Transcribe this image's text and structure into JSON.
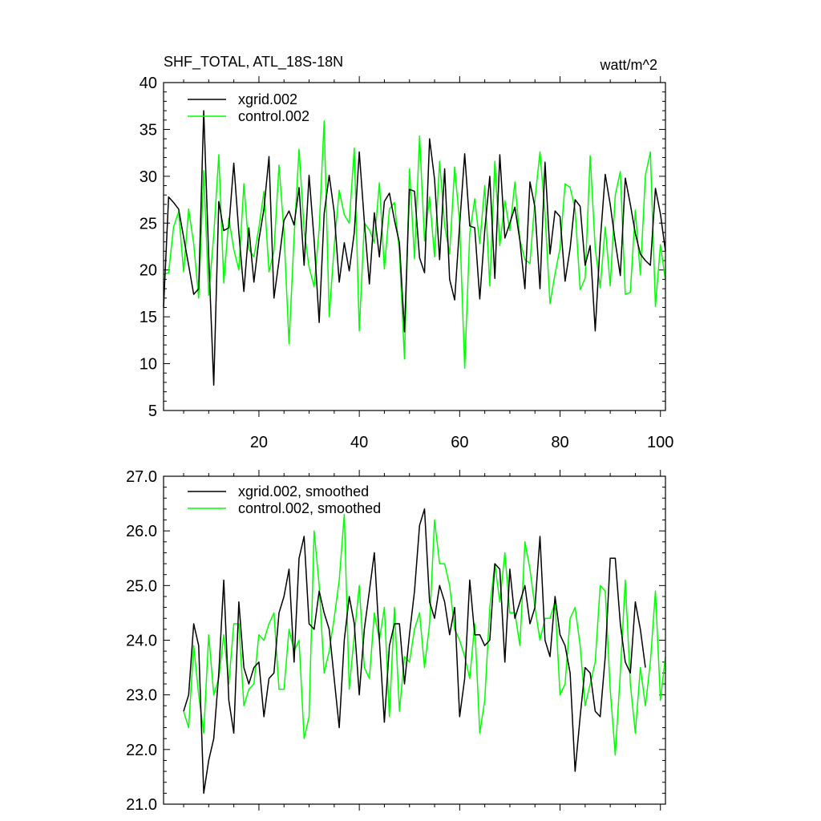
{
  "chart_data": [
    {
      "type": "line",
      "title": "SHF_TOTAL, ATL_18S-18N",
      "units": "watt/m^2",
      "xlim": [
        1,
        101
      ],
      "ylim": [
        5,
        40
      ],
      "yticks": [
        5,
        10,
        15,
        20,
        25,
        30,
        35,
        40
      ],
      "ytick_labels": [
        "5",
        "10",
        "15",
        "20",
        "25",
        "30",
        "35",
        "40"
      ],
      "xticks": [
        20,
        40,
        60,
        80,
        100
      ],
      "xtick_labels": [
        "20",
        "40",
        "60",
        "80",
        "100"
      ],
      "legend": "top-left",
      "series": [
        {
          "name": "xgrid.002",
          "color": "#000000",
          "x_start": 1,
          "values": [
            16.0,
            27.8,
            27.2,
            26.5,
            23.5,
            20.5,
            17.4,
            18.0,
            37.0,
            21.5,
            7.7,
            27.3,
            24.2,
            24.5,
            31.4,
            24.0,
            17.7,
            24.5,
            18.7,
            23.2,
            26.5,
            32.1,
            17.0,
            21.0,
            25.3,
            26.3,
            24.8,
            28.8,
            20.5,
            30.1,
            23.2,
            14.4,
            26.0,
            30.1,
            26.2,
            18.7,
            22.9,
            19.9,
            24.0,
            32.6,
            25.2,
            18.5,
            26.1,
            21.4,
            27.3,
            28.2,
            25.3,
            22.9,
            13.4,
            28.6,
            28.4,
            21.3,
            19.7,
            34.0,
            29.7,
            21.1,
            30.8,
            19.0,
            16.8,
            24.8,
            32.4,
            24.7,
            24.5,
            16.9,
            24.2,
            30.0,
            19.1,
            32.3,
            23.4,
            25.0,
            26.7,
            23.1,
            18.0,
            29.4,
            26.7,
            18.0,
            31.5,
            21.7,
            26.3,
            25.7,
            18.8,
            22.3,
            27.5,
            26.8,
            20.5,
            22.6,
            13.5,
            23.0,
            30.2,
            27.0,
            23.0,
            19.4,
            29.8,
            27.0,
            23.9,
            21.7,
            21.0,
            20.5,
            28.7,
            26.0,
            22.0
          ]
        },
        {
          "name": "control.002",
          "color": "#00ff00",
          "x_start": 1,
          "values": [
            19.5,
            19.7,
            24.6,
            26.2,
            19.8,
            26.5,
            22.8,
            17.0,
            30.6,
            17.3,
            23.7,
            32.3,
            18.6,
            25.5,
            22.2,
            20.0,
            29.2,
            22.2,
            21.4,
            24.5,
            28.4,
            19.8,
            22.0,
            31.2,
            24.0,
            12.1,
            23.5,
            32.9,
            24.2,
            20.3,
            18.2,
            24.4,
            35.9,
            15.0,
            22.5,
            28.5,
            25.9,
            25.0,
            33.0,
            13.5,
            25.0,
            24.3,
            22.9,
            29.3,
            20.1,
            26.5,
            27.2,
            21.9,
            10.5,
            30.8,
            21.2,
            34.3,
            23.1,
            27.8,
            21.4,
            31.6,
            24.7,
            21.7,
            31.0,
            25.0,
            9.5,
            23.9,
            27.6,
            22.8,
            29.0,
            18.3,
            31.6,
            22.6,
            27.4,
            24.2,
            29.4,
            23.2,
            21.1,
            20.7,
            27.5,
            32.6,
            26.0,
            16.4,
            19.6,
            22.3,
            29.2,
            28.8,
            26.5,
            17.9,
            19.1,
            32.2,
            22.3,
            18.1,
            24.6,
            18.3,
            28.0,
            30.5,
            17.4,
            17.6,
            26.4,
            19.5,
            30.1,
            32.6,
            16.1,
            22.7,
            18.9
          ]
        }
      ]
    },
    {
      "type": "line",
      "xlim": [
        1,
        101
      ],
      "ylim": [
        21.0,
        27.0
      ],
      "yticks": [
        21.0,
        22.0,
        23.0,
        24.0,
        25.0,
        26.0,
        27.0
      ],
      "ytick_labels": [
        "21.0",
        "22.0",
        "23.0",
        "24.0",
        "25.0",
        "26.0",
        "27.0"
      ],
      "xticks": [
        20,
        40,
        60,
        80,
        100
      ],
      "legend": "top-left",
      "series": [
        {
          "name": "xgrid.002, smoothed",
          "color": "#000000",
          "x_start": 5,
          "values": [
            22.7,
            23.0,
            24.3,
            23.9,
            21.2,
            21.8,
            22.2,
            23.4,
            25.1,
            22.9,
            22.3,
            24.7,
            23.5,
            23.2,
            23.5,
            23.6,
            22.6,
            23.3,
            23.4,
            24.5,
            24.8,
            25.3,
            23.6,
            25.5,
            25.9,
            24.3,
            24.2,
            24.9,
            24.5,
            24.2,
            23.3,
            22.4,
            24.0,
            24.8,
            24.3,
            23.0,
            24.2,
            24.9,
            25.6,
            24.0,
            22.5,
            23.9,
            24.3,
            24.3,
            23.2,
            24.1,
            24.9,
            26.1,
            26.4,
            24.7,
            24.4,
            25.0,
            24.7,
            24.1,
            24.6,
            22.6,
            23.3,
            25.1,
            24.1,
            24.1,
            23.9,
            24.0,
            25.4,
            25.3,
            23.6,
            25.3,
            24.4,
            24.7,
            25.0,
            24.3,
            24.6,
            25.9,
            24.0,
            23.7,
            24.8,
            24.1,
            23.9,
            23.4,
            21.6,
            22.6,
            23.5,
            23.4,
            22.7,
            22.6,
            23.7,
            25.5,
            25.5,
            24.3,
            23.6,
            23.4,
            24.7,
            24.2,
            23.5
          ]
        },
        {
          "name": "control.002, smoothed",
          "color": "#00ff00",
          "x_start": 5,
          "values": [
            22.7,
            22.4,
            23.9,
            23.0,
            22.3,
            24.1,
            23.0,
            23.3,
            24.1,
            23.2,
            24.3,
            24.3,
            22.8,
            23.1,
            23.2,
            24.1,
            24.0,
            24.3,
            24.5,
            23.1,
            23.1,
            24.2,
            23.8,
            24.0,
            22.2,
            22.6,
            26.0,
            25.0,
            23.4,
            23.8,
            24.4,
            25.1,
            26.3,
            23.1,
            24.1,
            25.0,
            23.5,
            23.3,
            24.5,
            24.0,
            24.6,
            22.6,
            24.6,
            22.7,
            23.7,
            23.6,
            24.2,
            24.5,
            23.5,
            24.3,
            26.2,
            25.4,
            25.4,
            25.0,
            24.2,
            24.0,
            23.7,
            23.3,
            24.3,
            22.3,
            22.9,
            24.6,
            25.4,
            24.7,
            25.6,
            24.5,
            24.5,
            23.9,
            25.8,
            25.3,
            24.6,
            24.0,
            24.4,
            24.4,
            24.7,
            23.0,
            23.2,
            24.4,
            24.6,
            23.9,
            22.8,
            23.2,
            23.6,
            25.0,
            24.9,
            23.1,
            21.9,
            23.4,
            25.1,
            23.2,
            22.3,
            23.5,
            22.8,
            23.6,
            24.9,
            22.9,
            23.7
          ]
        }
      ]
    }
  ]
}
